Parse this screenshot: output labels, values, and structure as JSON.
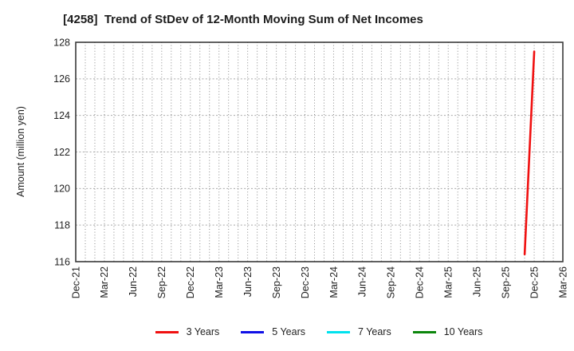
{
  "chart_data": {
    "type": "line",
    "title": "[4258]  Trend of StDev of 12-Month Moving Sum of Net Incomes",
    "ylabel": "Amount (million yen)",
    "ylim": [
      116,
      128
    ],
    "yticks": [
      116,
      118,
      120,
      122,
      124,
      126,
      128
    ],
    "x_tick_labels": [
      "Dec-21",
      "Mar-22",
      "Jun-22",
      "Sep-22",
      "Dec-22",
      "Mar-23",
      "Jun-23",
      "Sep-23",
      "Dec-23",
      "Mar-24",
      "Jun-24",
      "Sep-24",
      "Dec-24",
      "Mar-25",
      "Jun-25",
      "Sep-25",
      "Dec-25",
      "Mar-26"
    ],
    "months_per_tick": 3,
    "total_months": 51,
    "grid": {
      "on": true,
      "style": "dotted",
      "minor_vertical": "monthly",
      "color_vertical": "#8a8a8a",
      "color_horizontal": "#a8a8a8"
    },
    "axis_color": "#3a3a3a",
    "text_color": "#1f1f1f",
    "legend_position": "bottom-center",
    "series": [
      {
        "name": "3 Years",
        "color": "#f01010",
        "points": [
          {
            "month": "Nov-25",
            "month_index": 47,
            "value": 116.4
          },
          {
            "month": "Dec-25",
            "month_index": 48,
            "value": 127.5
          }
        ]
      },
      {
        "name": "5 Years",
        "color": "#1010e6",
        "points": []
      },
      {
        "name": "7 Years",
        "color": "#00e2ee",
        "points": []
      },
      {
        "name": "10 Years",
        "color": "#0c860c",
        "points": []
      }
    ]
  }
}
